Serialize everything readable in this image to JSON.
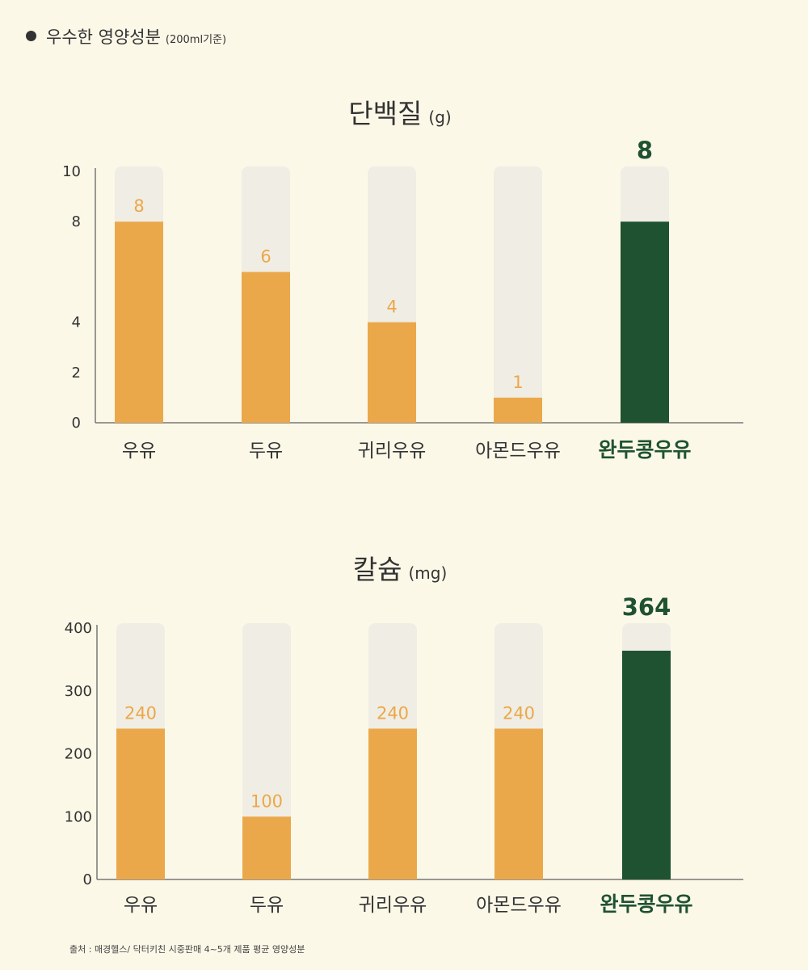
{
  "header": {
    "title": "우수한 영양성분",
    "subtitle": "(200ml기준)"
  },
  "colors": {
    "background": "#fcf8e8",
    "track": "#f0ede4",
    "bar": "#eba84a",
    "highlight": "#1f5230",
    "axis": "#777777",
    "text": "#333333"
  },
  "chart_data": [
    {
      "type": "bar",
      "title": "단백질",
      "unit": "(g)",
      "categories": [
        "우유",
        "두유",
        "귀리우유",
        "아몬드우유",
        "완두콩우유"
      ],
      "values": [
        8,
        6,
        4,
        1,
        8
      ],
      "value_labels": [
        "8",
        "6",
        "4",
        "1",
        "8"
      ],
      "highlight_index": 4,
      "ylim": [
        0,
        10
      ],
      "yticks": [
        0,
        2,
        4,
        8,
        10
      ],
      "ytick_labels": [
        "0",
        "2",
        "4",
        "8",
        "10"
      ],
      "grid": false,
      "legend": "none"
    },
    {
      "type": "bar",
      "title": "칼슘",
      "unit": "(mg)",
      "categories": [
        "우유",
        "두유",
        "귀리우유",
        "아몬드우유",
        "완두콩우유"
      ],
      "values": [
        240,
        100,
        240,
        240,
        364
      ],
      "value_labels": [
        "240",
        "100",
        "240",
        "240",
        "364"
      ],
      "highlight_index": 4,
      "ylim": [
        0,
        400
      ],
      "yticks": [
        0,
        100,
        200,
        300,
        400
      ],
      "ytick_labels": [
        "0",
        "100",
        "200",
        "300",
        "400"
      ],
      "grid": false,
      "legend": "none"
    }
  ],
  "footer": {
    "source": "출처 : 매경헬스/ 닥터키친 시중판매 4~5개 제품 평균 영양성분"
  }
}
